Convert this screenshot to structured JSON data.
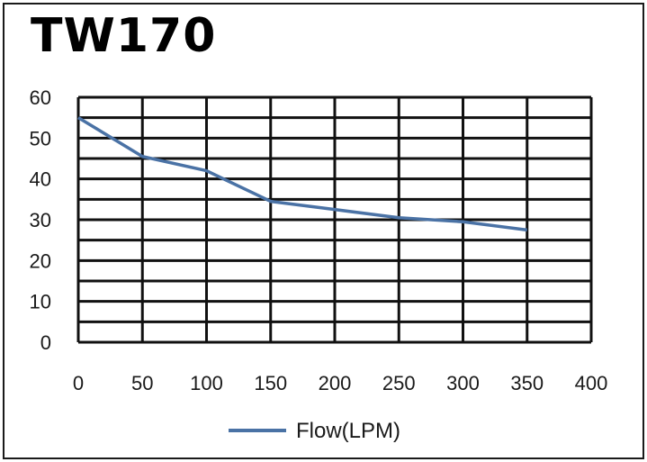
{
  "chart_data": {
    "type": "line",
    "title": "TW170",
    "xlabel": "",
    "ylabel": "",
    "x_ticks": [
      "0",
      "50",
      "100",
      "150",
      "200",
      "250",
      "300",
      "350",
      "400"
    ],
    "y_ticks": [
      "0",
      "10",
      "20",
      "30",
      "40",
      "50",
      "60"
    ],
    "xlim": [
      0,
      400
    ],
    "ylim": [
      0,
      60
    ],
    "grid": true,
    "legend_position": "bottom-center",
    "series": [
      {
        "name": "Flow(LPM)",
        "color": "#4a72a5",
        "x": [
          0,
          50,
          100,
          150,
          200,
          250,
          300,
          350
        ],
        "y": [
          55,
          45.5,
          42,
          34.5,
          32.5,
          30.5,
          29.5,
          27.5
        ]
      }
    ]
  }
}
